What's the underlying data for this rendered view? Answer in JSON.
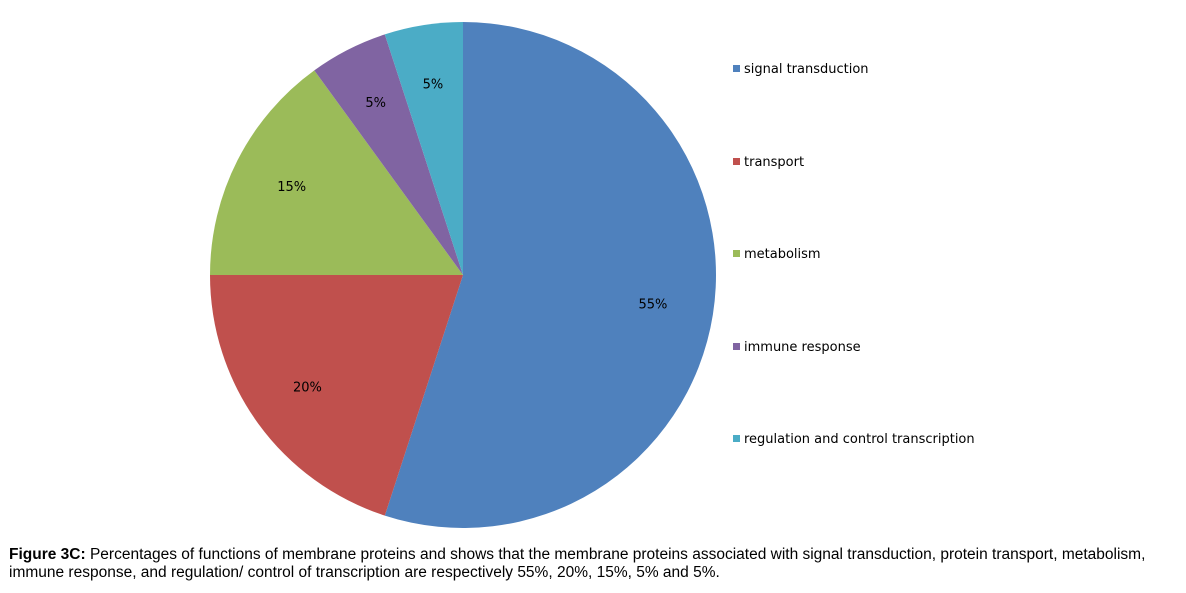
{
  "chart_data": {
    "type": "pie",
    "slices": [
      {
        "label": "signal transduction",
        "value": 55,
        "data_label": "55%",
        "color": "#4F81BD"
      },
      {
        "label": "transport",
        "value": 20,
        "data_label": "20%",
        "color": "#C0504D"
      },
      {
        "label": "metabolism",
        "value": 15,
        "data_label": "15%",
        "color": "#9BBB59"
      },
      {
        "label": "immune response",
        "value": 5,
        "data_label": "5%",
        "color": "#8064A2"
      },
      {
        "label": "regulation and control transcription",
        "value": 5,
        "data_label": "5%",
        "color": "#4BACC6"
      }
    ],
    "legend_position": "right",
    "start_angle": "top, clockwise"
  },
  "caption": {
    "label": "Figure 3C:",
    "text": " Percentages of functions of membrane proteins and shows that the membrane proteins associated with signal transduction, protein transport, metabolism, immune response, and regulation/ control of transcription are respectively 55%, 20%, 15%, 5% and 5%."
  }
}
